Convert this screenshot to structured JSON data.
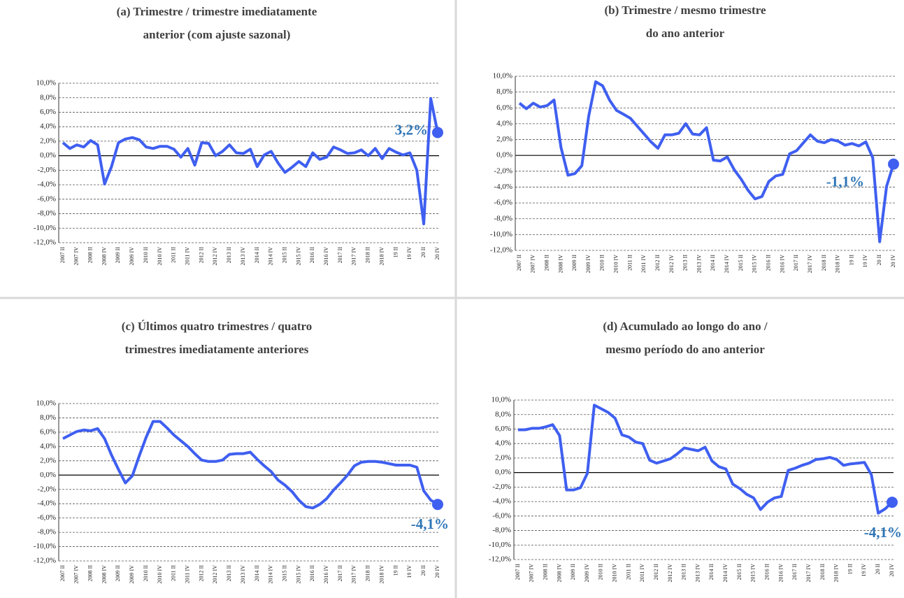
{
  "chart_data": [
    {
      "type": "line",
      "title": [
        "(a) Trimestre / trimestre imediatamente",
        "anterior (com ajuste sazonal)"
      ],
      "categories": [
        "2007 II",
        null,
        "2007 IV",
        null,
        "2008 II",
        null,
        "2008 IV",
        null,
        "2009 II",
        null,
        "2009 IV",
        null,
        "2010 II",
        null,
        "2010 IV",
        null,
        "2011 II",
        null,
        "2011 IV",
        null,
        "2012 II",
        null,
        "2012 IV",
        null,
        "2013 II",
        null,
        "2013 IV",
        null,
        "2014 II",
        null,
        "2014 IV",
        null,
        "2015 II",
        null,
        "2015 IV",
        null,
        "2016 II",
        null,
        "2016 IV",
        null,
        "2017 II",
        null,
        "2017 IV",
        null,
        "2018 II",
        null,
        "2018 IV",
        null,
        "19 II",
        null,
        "19 IV",
        null,
        "20 II",
        null,
        "20 IV"
      ],
      "series": [
        {
          "color": "#3f5ff0",
          "values": [
            1.8,
            1.0,
            1.5,
            1.2,
            2.1,
            1.5,
            -3.9,
            -1.5,
            1.8,
            2.3,
            2.5,
            2.2,
            1.2,
            1.0,
            1.3,
            1.3,
            0.9,
            -0.2,
            1.0,
            -1.3,
            1.8,
            1.7,
            0.0,
            0.6,
            1.5,
            0.4,
            0.3,
            0.9,
            -1.5,
            0.1,
            0.6,
            -1.0,
            -2.3,
            -1.6,
            -0.8,
            -1.5,
            0.4,
            -0.5,
            -0.2,
            1.2,
            0.8,
            0.3,
            0.4,
            0.8,
            0.0,
            1.0,
            -0.4,
            1.0,
            0.5,
            0.1,
            0.4,
            -2.0,
            -9.4,
            7.9,
            3.2
          ],
          "value_labels": [
            null,
            null,
            null,
            null,
            null,
            null,
            null,
            null,
            null,
            null,
            null,
            null,
            null,
            null,
            null,
            null,
            null,
            null,
            null,
            null,
            null,
            null,
            null,
            null,
            null,
            null,
            null,
            null,
            null,
            null,
            null,
            null,
            null,
            null,
            null,
            null,
            null,
            null,
            null,
            null,
            null,
            null,
            null,
            null,
            null,
            null,
            null,
            null,
            null,
            null,
            null,
            null,
            null,
            null,
            "3,2%"
          ]
        }
      ],
      "ylim": [
        -12,
        10
      ],
      "yticks": [
        {
          "value": -12,
          "label": "-12,0%"
        },
        {
          "value": -10,
          "label": "-10,0%"
        },
        {
          "value": -8,
          "label": "-8,0%"
        },
        {
          "value": -6,
          "label": "-6,0%"
        },
        {
          "value": -4,
          "label": "-4,0%"
        },
        {
          "value": -2,
          "label": "-2,0%"
        },
        {
          "value": 0,
          "label": "0,0%"
        },
        {
          "value": 2,
          "label": "2,0%"
        },
        {
          "value": 4,
          "label": "4,0%"
        },
        {
          "value": 6,
          "label": "6,0%"
        },
        {
          "value": 8,
          "label": "8,0%"
        },
        {
          "value": 10,
          "label": "10,0%"
        }
      ],
      "grid": true
    },
    {
      "type": "line",
      "title": [
        "(b) Trimestre / mesmo trimestre",
        "do ano anterior"
      ],
      "categories": [
        "2007 II",
        null,
        "2007 IV",
        null,
        "2008 II",
        null,
        "2008 IV",
        null,
        "2009 II",
        null,
        "2009 IV",
        null,
        "2010 II",
        null,
        "2010 IV",
        null,
        "2011 II",
        null,
        "2011 IV",
        null,
        "2012 II",
        null,
        "2012 IV",
        null,
        "2013 II",
        null,
        "2013 IV",
        null,
        "2014 II",
        null,
        "2014 IV",
        null,
        "2015 II",
        null,
        "2015 IV",
        null,
        "2016 II",
        null,
        "2016 IV",
        null,
        "2017 II",
        null,
        "2017 IV",
        null,
        "2018 II",
        null,
        "2018 IV",
        null,
        "19 II",
        null,
        "19 IV",
        null,
        "20 II",
        null,
        "20 IV"
      ],
      "series": [
        {
          "color": "#3f5ff0",
          "values": [
            6.6,
            5.9,
            6.6,
            6.1,
            6.3,
            7.0,
            1.0,
            -2.5,
            -2.3,
            -1.3,
            5.0,
            9.3,
            8.8,
            7.0,
            5.7,
            5.2,
            4.7,
            3.7,
            2.7,
            1.7,
            0.9,
            2.6,
            2.6,
            2.8,
            4.0,
            2.7,
            2.6,
            3.5,
            -0.6,
            -0.7,
            -0.2,
            -1.8,
            -3.0,
            -4.4,
            -5.5,
            -5.2,
            -3.3,
            -2.6,
            -2.4,
            0.2,
            0.6,
            1.6,
            2.6,
            1.8,
            1.6,
            2.0,
            1.8,
            1.3,
            1.5,
            1.2,
            1.7,
            -0.3,
            -10.9,
            -3.9,
            -1.1
          ],
          "value_labels": [
            null,
            null,
            null,
            null,
            null,
            null,
            null,
            null,
            null,
            null,
            null,
            null,
            null,
            null,
            null,
            null,
            null,
            null,
            null,
            null,
            null,
            null,
            null,
            null,
            null,
            null,
            null,
            null,
            null,
            null,
            null,
            null,
            null,
            null,
            null,
            null,
            null,
            null,
            null,
            null,
            null,
            null,
            null,
            null,
            null,
            null,
            null,
            null,
            null,
            null,
            null,
            null,
            null,
            null,
            "-1,1%"
          ]
        }
      ],
      "ylim": [
        -12,
        10
      ],
      "yticks": [
        {
          "value": -12,
          "label": "-12,0%"
        },
        {
          "value": -10,
          "label": "-10,0%"
        },
        {
          "value": -8,
          "label": "-8,0%"
        },
        {
          "value": -6,
          "label": "-6,0%"
        },
        {
          "value": -4,
          "label": "-4,0%"
        },
        {
          "value": -2,
          "label": "-2,0%"
        },
        {
          "value": 0,
          "label": "0,0%"
        },
        {
          "value": 2,
          "label": "2,0%"
        },
        {
          "value": 4,
          "label": "4,0%"
        },
        {
          "value": 6,
          "label": "6,0%"
        },
        {
          "value": 8,
          "label": "8,0%"
        },
        {
          "value": 10,
          "label": "10,0%"
        }
      ],
      "grid": true
    },
    {
      "type": "line",
      "title": [
        "(c) Últimos quatro  trimestres / quatro",
        "trimestres imediatamente anteriores"
      ],
      "categories": [
        "2007 II",
        null,
        "2007 IV",
        null,
        "2008 II",
        null,
        "2008 IV",
        null,
        "2009 II",
        null,
        "2009 IV",
        null,
        "2010 II",
        null,
        "2010 IV",
        null,
        "2011 II",
        null,
        "2011 IV",
        null,
        "2012 II",
        null,
        "2012 IV",
        null,
        "2013 II",
        null,
        "2013 IV",
        null,
        "2014 II",
        null,
        "2014 IV",
        null,
        "2015 II",
        null,
        "2015 IV",
        null,
        "2016 II",
        null,
        "2016 IV",
        null,
        "2017 II",
        null,
        "2017 IV",
        null,
        "2018 II",
        null,
        "2018 IV",
        null,
        "19 II",
        null,
        "19 IV",
        null,
        "20 II",
        null,
        "20 IV"
      ],
      "series": [
        {
          "color": "#3f5ff0",
          "values": [
            5.1,
            5.6,
            6.1,
            6.3,
            6.2,
            6.5,
            5.1,
            2.8,
            0.8,
            -1.1,
            -0.1,
            2.7,
            5.3,
            7.5,
            7.5,
            6.6,
            5.6,
            4.8,
            4.0,
            3.0,
            2.1,
            1.9,
            1.9,
            2.1,
            2.9,
            3.0,
            3.0,
            3.2,
            2.2,
            1.3,
            0.5,
            -0.7,
            -1.4,
            -2.3,
            -3.5,
            -4.4,
            -4.6,
            -4.1,
            -3.3,
            -2.1,
            -1.1,
            0.0,
            1.3,
            1.8,
            1.9,
            1.9,
            1.8,
            1.6,
            1.4,
            1.4,
            1.4,
            1.1,
            -2.2,
            -3.5,
            -4.1
          ],
          "value_labels": [
            null,
            null,
            null,
            null,
            null,
            null,
            null,
            null,
            null,
            null,
            null,
            null,
            null,
            null,
            null,
            null,
            null,
            null,
            null,
            null,
            null,
            null,
            null,
            null,
            null,
            null,
            null,
            null,
            null,
            null,
            null,
            null,
            null,
            null,
            null,
            null,
            null,
            null,
            null,
            null,
            null,
            null,
            null,
            null,
            null,
            null,
            null,
            null,
            null,
            null,
            null,
            null,
            null,
            null,
            "-4,1%"
          ]
        }
      ],
      "ylim": [
        -12,
        10
      ],
      "yticks": [
        {
          "value": -12,
          "label": "-12,0%"
        },
        {
          "value": -10,
          "label": "-10,0%"
        },
        {
          "value": -8,
          "label": "-8,0%"
        },
        {
          "value": -6,
          "label": "-6,0%"
        },
        {
          "value": -4,
          "label": "-4,0%"
        },
        {
          "value": -2,
          "label": "-2,0%"
        },
        {
          "value": 0,
          "label": "0,0%"
        },
        {
          "value": 2,
          "label": "2,0%"
        },
        {
          "value": 4,
          "label": "4,0%"
        },
        {
          "value": 6,
          "label": "6,0%"
        },
        {
          "value": 8,
          "label": "8,0%"
        },
        {
          "value": 10,
          "label": "10,0%"
        }
      ],
      "grid": true
    },
    {
      "type": "line",
      "title": [
        "(d) Acumulado ao longo do ano /",
        "mesmo período do ano anterior"
      ],
      "categories": [
        "2007 II",
        null,
        "2007 IV",
        null,
        "2008 II",
        null,
        "2008 IV",
        null,
        "2009 II",
        null,
        "2009 IV",
        null,
        "2010 II",
        null,
        "2010 IV",
        null,
        "2011 II",
        null,
        "2011 IV",
        null,
        "2012 II",
        null,
        "2012 IV",
        null,
        "2013 II",
        null,
        "2013 IV",
        null,
        "2014 II",
        null,
        "2014 IV",
        null,
        "2015 II",
        null,
        "2015 IV",
        null,
        "2016 II",
        null,
        "2016 IV",
        null,
        "2017 II",
        null,
        "2017 IV",
        null,
        "2018 II",
        null,
        "2018 IV",
        null,
        "19 II",
        null,
        "19 IV",
        null,
        "20 II",
        null,
        "20 IV"
      ],
      "series": [
        {
          "color": "#3f5ff0",
          "values": [
            5.9,
            5.9,
            6.1,
            6.1,
            6.3,
            6.6,
            5.1,
            -2.4,
            -2.4,
            -2.1,
            -0.1,
            9.3,
            8.8,
            8.3,
            7.5,
            5.2,
            4.9,
            4.2,
            4.0,
            1.7,
            1.3,
            1.6,
            1.9,
            2.6,
            3.4,
            3.2,
            3.0,
            3.5,
            1.6,
            0.8,
            0.5,
            -1.6,
            -2.2,
            -3.0,
            -3.5,
            -5.1,
            -4.1,
            -3.5,
            -3.3,
            0.3,
            0.6,
            1.0,
            1.3,
            1.8,
            1.9,
            2.1,
            1.8,
            1.0,
            1.2,
            1.3,
            1.4,
            -0.3,
            -5.6,
            -5.0,
            -4.1
          ],
          "value_labels": [
            null,
            null,
            null,
            null,
            null,
            null,
            null,
            null,
            null,
            null,
            null,
            null,
            null,
            null,
            null,
            null,
            null,
            null,
            null,
            null,
            null,
            null,
            null,
            null,
            null,
            null,
            null,
            null,
            null,
            null,
            null,
            null,
            null,
            null,
            null,
            null,
            null,
            null,
            null,
            null,
            null,
            null,
            null,
            null,
            null,
            null,
            null,
            null,
            null,
            null,
            null,
            null,
            null,
            null,
            "-4,1%"
          ]
        }
      ],
      "ylim": [
        -12,
        10
      ],
      "yticks": [
        {
          "value": -12,
          "label": "-12,0%"
        },
        {
          "value": -10,
          "label": "-10,0%"
        },
        {
          "value": -8,
          "label": "-8,0%"
        },
        {
          "value": -6,
          "label": "-6,0%"
        },
        {
          "value": -4,
          "label": "-4,0%"
        },
        {
          "value": -2,
          "label": "-2,0%"
        },
        {
          "value": 0,
          "label": "0,0%"
        },
        {
          "value": 2,
          "label": "2,0%"
        },
        {
          "value": 4,
          "label": "4,0%"
        },
        {
          "value": 6,
          "label": "6,0%"
        },
        {
          "value": 8,
          "label": "8,0%"
        },
        {
          "value": 10,
          "label": "10,0%"
        }
      ],
      "grid": true
    }
  ]
}
